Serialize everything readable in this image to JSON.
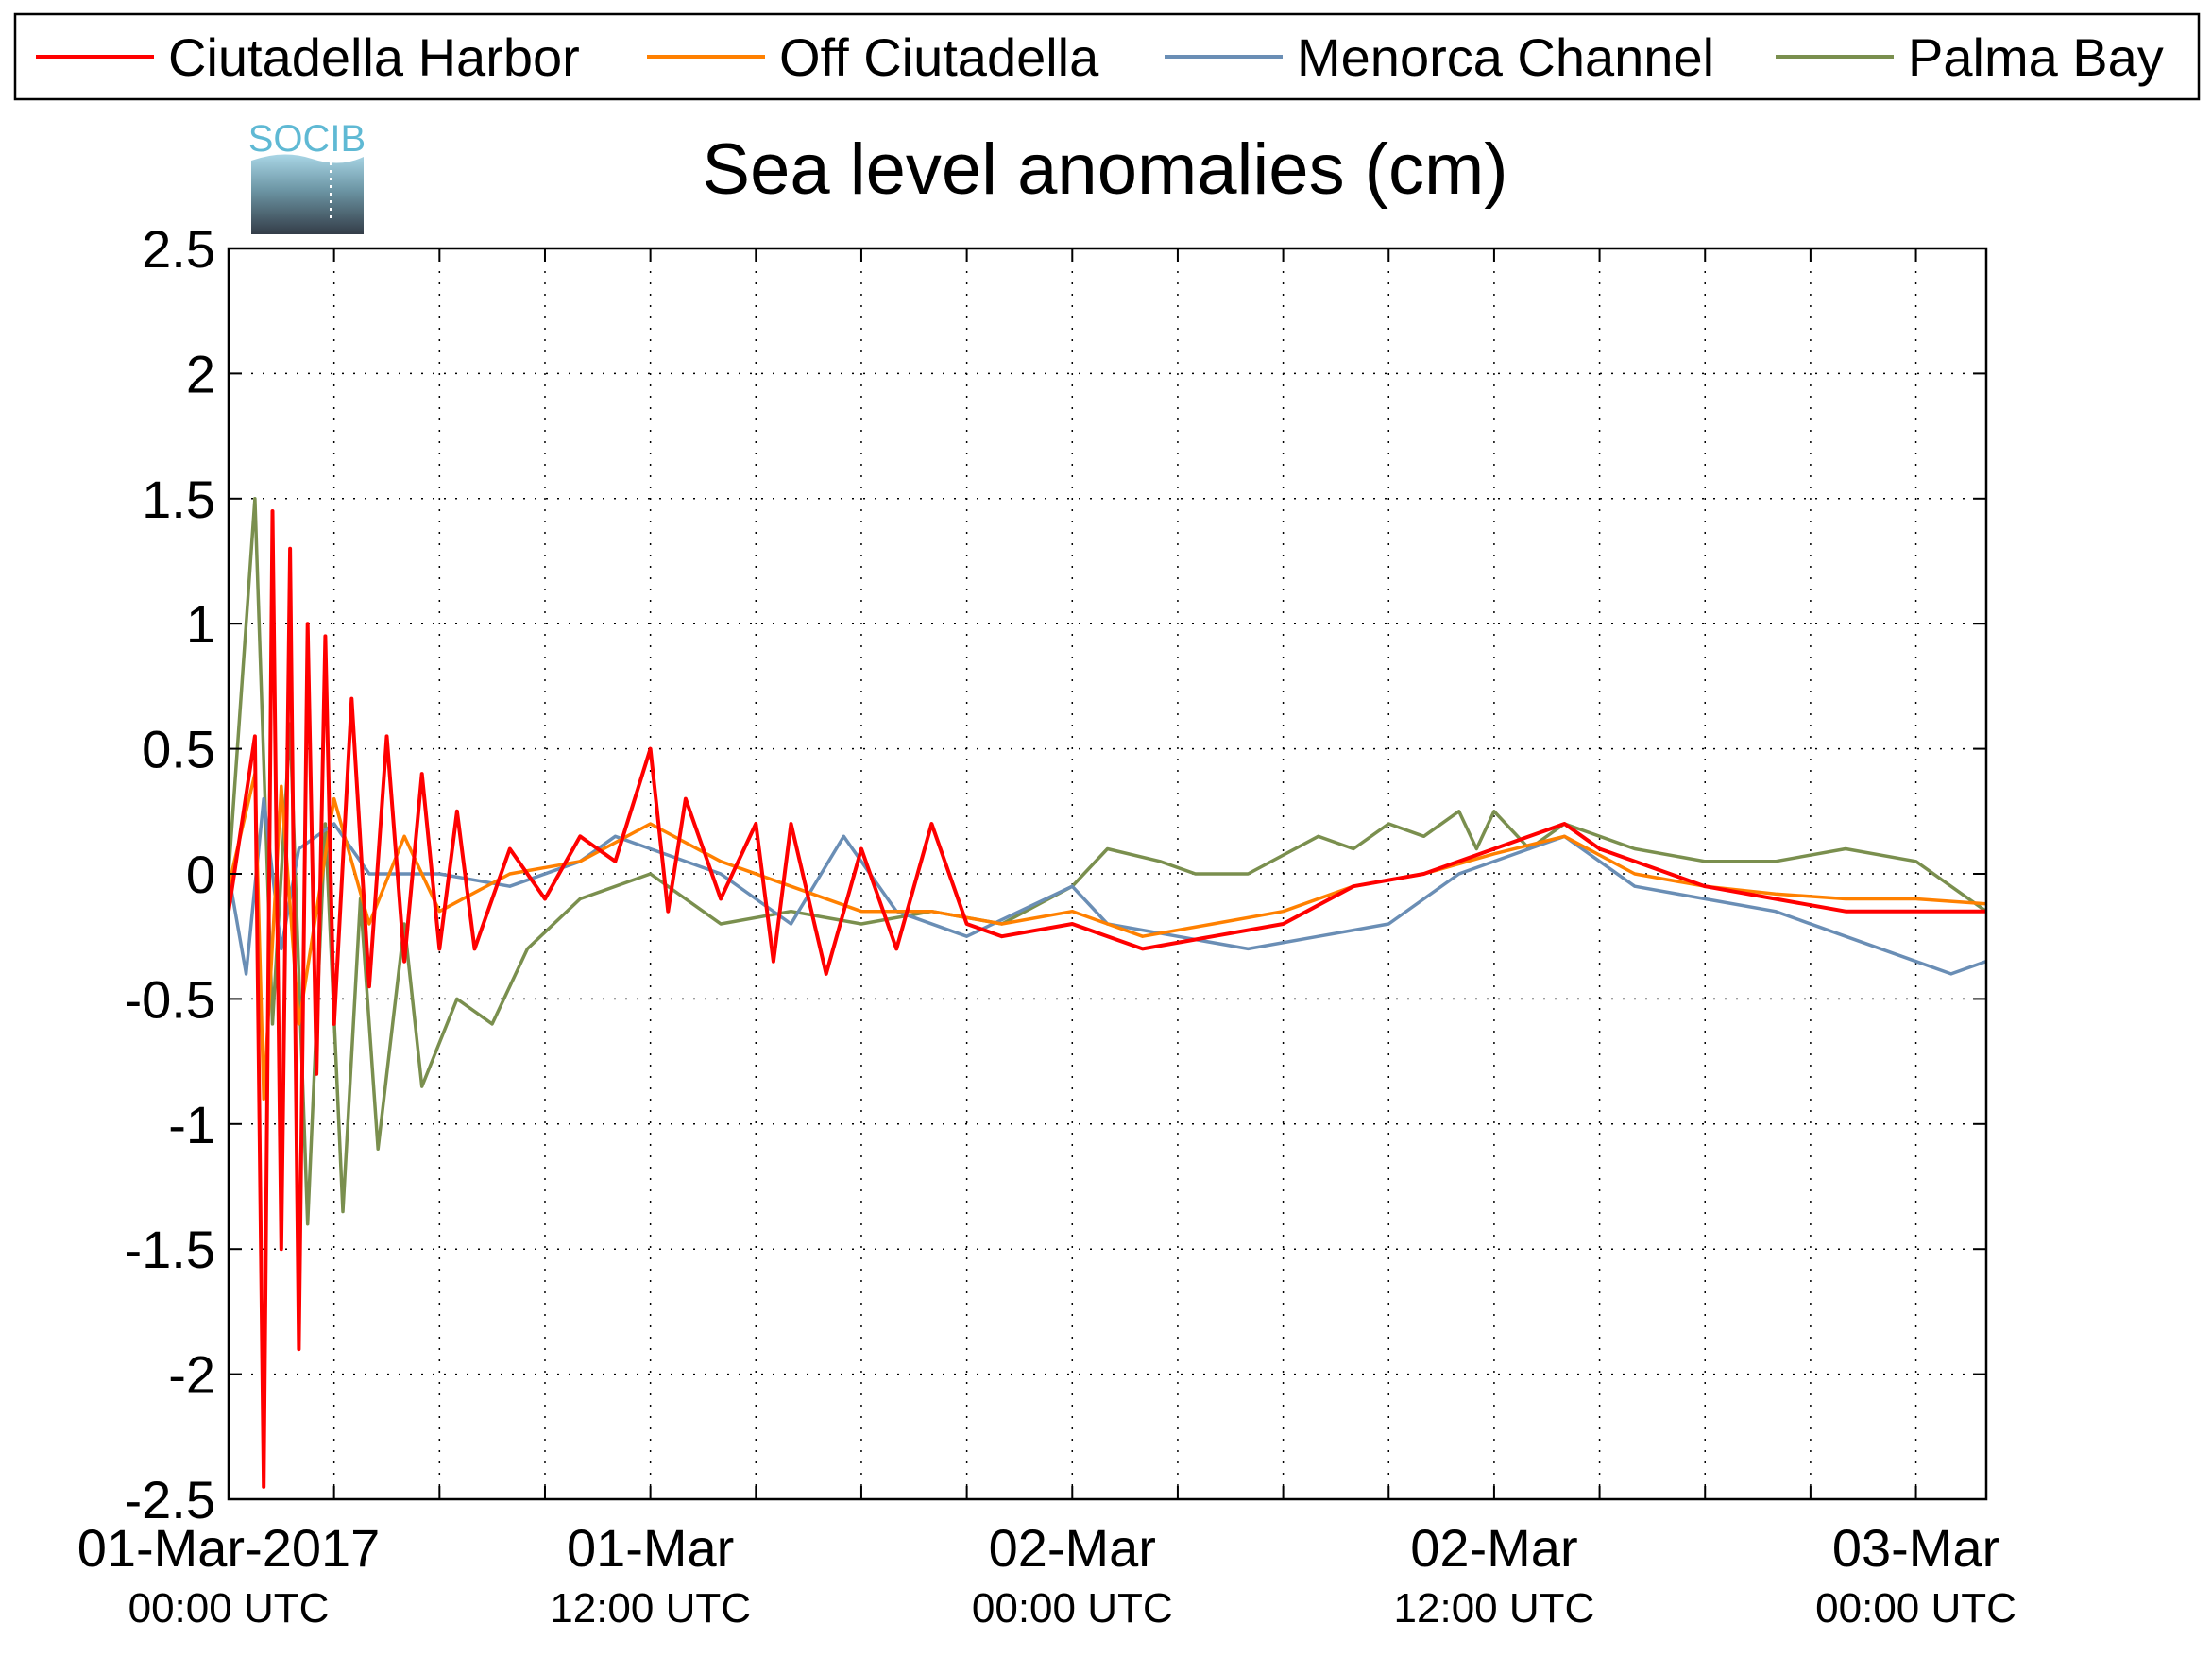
{
  "chart_data": {
    "type": "line",
    "title": "Sea level anomalies (cm)",
    "logo_text": "SOCIB",
    "xlabel": "",
    "ylabel": "",
    "x_range": [
      "2017-03-01 00:00",
      "2017-03-03 02:00"
    ],
    "ylim": [
      -2.5,
      2.5
    ],
    "y_ticks": [
      -2.5,
      -2,
      -1.5,
      -1,
      -0.5,
      0,
      0.5,
      1,
      1.5,
      2,
      2.5
    ],
    "y_tick_labels": [
      "-2.5",
      "-2",
      "-1.5",
      "-1",
      "-0.5",
      "0",
      "0.5",
      "1",
      "1.5",
      "2",
      "2.5"
    ],
    "x_ticks": [
      {
        "time": "2017-03-01 00:00",
        "line1": "01-Mar-2017",
        "line2": "00:00 UTC"
      },
      {
        "time": "2017-03-01 12:00",
        "line1": "01-Mar",
        "line2": "12:00 UTC"
      },
      {
        "time": "2017-03-02 00:00",
        "line1": "02-Mar",
        "line2": "00:00 UTC"
      },
      {
        "time": "2017-03-02 12:00",
        "line1": "02-Mar",
        "line2": "12:00 UTC"
      },
      {
        "time": "2017-03-03 00:00",
        "line1": "03-Mar",
        "line2": "00:00 UTC"
      }
    ],
    "grid": true,
    "legend_position": "top",
    "series": [
      {
        "name": "Ciutadella Harbor",
        "color": "#ff0000",
        "points": [
          [
            "2017-03-01 00:00",
            -0.15
          ],
          [
            "2017-03-01 00:45",
            0.55
          ],
          [
            "2017-03-01 01:00",
            -2.45
          ],
          [
            "2017-03-01 01:15",
            1.45
          ],
          [
            "2017-03-01 01:30",
            -1.5
          ],
          [
            "2017-03-01 01:45",
            1.3
          ],
          [
            "2017-03-01 02:00",
            -1.9
          ],
          [
            "2017-03-01 02:15",
            1.0
          ],
          [
            "2017-03-01 02:30",
            -0.8
          ],
          [
            "2017-03-01 02:45",
            0.95
          ],
          [
            "2017-03-01 03:00",
            -0.6
          ],
          [
            "2017-03-01 03:30",
            0.7
          ],
          [
            "2017-03-01 04:00",
            -0.45
          ],
          [
            "2017-03-01 04:30",
            0.55
          ],
          [
            "2017-03-01 05:00",
            -0.35
          ],
          [
            "2017-03-01 05:30",
            0.4
          ],
          [
            "2017-03-01 06:00",
            -0.3
          ],
          [
            "2017-03-01 06:30",
            0.25
          ],
          [
            "2017-03-01 07:00",
            -0.3
          ],
          [
            "2017-03-01 08:00",
            0.1
          ],
          [
            "2017-03-01 09:00",
            -0.1
          ],
          [
            "2017-03-01 10:00",
            0.15
          ],
          [
            "2017-03-01 11:00",
            0.05
          ],
          [
            "2017-03-01 12:00",
            0.5
          ],
          [
            "2017-03-01 12:30",
            -0.15
          ],
          [
            "2017-03-01 13:00",
            0.3
          ],
          [
            "2017-03-01 14:00",
            -0.1
          ],
          [
            "2017-03-01 15:00",
            0.2
          ],
          [
            "2017-03-01 15:30",
            -0.35
          ],
          [
            "2017-03-01 16:00",
            0.2
          ],
          [
            "2017-03-01 17:00",
            -0.4
          ],
          [
            "2017-03-01 18:00",
            0.1
          ],
          [
            "2017-03-01 19:00",
            -0.3
          ],
          [
            "2017-03-01 20:00",
            0.2
          ],
          [
            "2017-03-01 21:00",
            -0.2
          ],
          [
            "2017-03-01 22:00",
            -0.25
          ],
          [
            "2017-03-02 00:00",
            -0.2
          ],
          [
            "2017-03-02 02:00",
            -0.3
          ],
          [
            "2017-03-02 04:00",
            -0.25
          ],
          [
            "2017-03-02 06:00",
            -0.2
          ],
          [
            "2017-03-02 08:00",
            -0.05
          ],
          [
            "2017-03-02 10:00",
            0.0
          ],
          [
            "2017-03-02 12:00",
            0.1
          ],
          [
            "2017-03-02 14:00",
            0.2
          ],
          [
            "2017-03-02 15:00",
            0.1
          ],
          [
            "2017-03-02 16:00",
            0.05
          ],
          [
            "2017-03-02 18:00",
            -0.05
          ],
          [
            "2017-03-02 20:00",
            -0.1
          ],
          [
            "2017-03-02 22:00",
            -0.15
          ],
          [
            "2017-03-03 00:00",
            -0.15
          ],
          [
            "2017-03-03 02:00",
            -0.15
          ]
        ]
      },
      {
        "name": "Off Ciutadella",
        "color": "#ff8000",
        "points": [
          [
            "2017-03-01 00:00",
            -0.05
          ],
          [
            "2017-03-01 00:45",
            0.4
          ],
          [
            "2017-03-01 01:00",
            -0.9
          ],
          [
            "2017-03-01 01:30",
            0.35
          ],
          [
            "2017-03-01 02:00",
            -0.6
          ],
          [
            "2017-03-01 03:00",
            0.3
          ],
          [
            "2017-03-01 04:00",
            -0.2
          ],
          [
            "2017-03-01 05:00",
            0.15
          ],
          [
            "2017-03-01 06:00",
            -0.15
          ],
          [
            "2017-03-01 08:00",
            0.0
          ],
          [
            "2017-03-01 10:00",
            0.05
          ],
          [
            "2017-03-01 12:00",
            0.2
          ],
          [
            "2017-03-01 14:00",
            0.05
          ],
          [
            "2017-03-01 16:00",
            -0.05
          ],
          [
            "2017-03-01 18:00",
            -0.15
          ],
          [
            "2017-03-01 20:00",
            -0.15
          ],
          [
            "2017-03-01 22:00",
            -0.2
          ],
          [
            "2017-03-02 00:00",
            -0.15
          ],
          [
            "2017-03-02 02:00",
            -0.25
          ],
          [
            "2017-03-02 04:00",
            -0.2
          ],
          [
            "2017-03-02 06:00",
            -0.15
          ],
          [
            "2017-03-02 08:00",
            -0.05
          ],
          [
            "2017-03-02 10:00",
            0.0
          ],
          [
            "2017-03-02 12:00",
            0.08
          ],
          [
            "2017-03-02 14:00",
            0.15
          ],
          [
            "2017-03-02 16:00",
            0.0
          ],
          [
            "2017-03-02 18:00",
            -0.05
          ],
          [
            "2017-03-02 20:00",
            -0.08
          ],
          [
            "2017-03-02 22:00",
            -0.1
          ],
          [
            "2017-03-03 00:00",
            -0.1
          ],
          [
            "2017-03-03 02:00",
            -0.12
          ]
        ]
      },
      {
        "name": "Menorca Channel",
        "color": "#6a8eb5",
        "points": [
          [
            "2017-03-01 00:00",
            0.0
          ],
          [
            "2017-03-01 00:30",
            -0.4
          ],
          [
            "2017-03-01 01:00",
            0.3
          ],
          [
            "2017-03-01 01:30",
            -0.3
          ],
          [
            "2017-03-01 02:00",
            0.1
          ],
          [
            "2017-03-01 03:00",
            0.2
          ],
          [
            "2017-03-01 04:00",
            0.0
          ],
          [
            "2017-03-01 06:00",
            0.0
          ],
          [
            "2017-03-01 08:00",
            -0.05
          ],
          [
            "2017-03-01 10:00",
            0.05
          ],
          [
            "2017-03-01 11:00",
            0.15
          ],
          [
            "2017-03-01 12:00",
            0.1
          ],
          [
            "2017-03-01 14:00",
            0.0
          ],
          [
            "2017-03-01 16:00",
            -0.2
          ],
          [
            "2017-03-01 17:30",
            0.15
          ],
          [
            "2017-03-01 19:00",
            -0.15
          ],
          [
            "2017-03-01 21:00",
            -0.25
          ],
          [
            "2017-03-02 00:00",
            -0.05
          ],
          [
            "2017-03-02 01:00",
            -0.2
          ],
          [
            "2017-03-02 03:00",
            -0.25
          ],
          [
            "2017-03-02 05:00",
            -0.3
          ],
          [
            "2017-03-02 07:00",
            -0.25
          ],
          [
            "2017-03-02 09:00",
            -0.2
          ],
          [
            "2017-03-02 11:00",
            0.0
          ],
          [
            "2017-03-02 13:00",
            0.1
          ],
          [
            "2017-03-02 14:00",
            0.15
          ],
          [
            "2017-03-02 16:00",
            -0.05
          ],
          [
            "2017-03-02 18:00",
            -0.1
          ],
          [
            "2017-03-02 20:00",
            -0.15
          ],
          [
            "2017-03-02 22:00",
            -0.25
          ],
          [
            "2017-03-03 00:00",
            -0.35
          ],
          [
            "2017-03-03 01:00",
            -0.4
          ],
          [
            "2017-03-03 02:00",
            -0.35
          ]
        ]
      },
      {
        "name": "Palma Bay",
        "color": "#7a8f4e",
        "points": [
          [
            "2017-03-01 00:00",
            0.0
          ],
          [
            "2017-03-01 00:45",
            1.5
          ],
          [
            "2017-03-01 01:15",
            -0.6
          ],
          [
            "2017-03-01 01:45",
            0.6
          ],
          [
            "2017-03-01 02:15",
            -1.4
          ],
          [
            "2017-03-01 02:45",
            0.2
          ],
          [
            "2017-03-01 03:15",
            -1.35
          ],
          [
            "2017-03-01 03:45",
            -0.1
          ],
          [
            "2017-03-01 04:15",
            -1.1
          ],
          [
            "2017-03-01 05:00",
            -0.2
          ],
          [
            "2017-03-01 05:30",
            -0.85
          ],
          [
            "2017-03-01 06:30",
            -0.5
          ],
          [
            "2017-03-01 07:30",
            -0.6
          ],
          [
            "2017-03-01 08:30",
            -0.3
          ],
          [
            "2017-03-01 10:00",
            -0.1
          ],
          [
            "2017-03-01 12:00",
            0.0
          ],
          [
            "2017-03-01 14:00",
            -0.2
          ],
          [
            "2017-03-01 16:00",
            -0.15
          ],
          [
            "2017-03-01 18:00",
            -0.2
          ],
          [
            "2017-03-01 20:00",
            -0.15
          ],
          [
            "2017-03-01 22:00",
            -0.2
          ],
          [
            "2017-03-02 00:00",
            -0.05
          ],
          [
            "2017-03-02 01:00",
            0.1
          ],
          [
            "2017-03-02 02:30",
            0.05
          ],
          [
            "2017-03-02 03:30",
            0.0
          ],
          [
            "2017-03-02 05:00",
            0.0
          ],
          [
            "2017-03-02 07:00",
            0.15
          ],
          [
            "2017-03-02 08:00",
            0.1
          ],
          [
            "2017-03-02 09:00",
            0.2
          ],
          [
            "2017-03-02 10:00",
            0.15
          ],
          [
            "2017-03-02 11:00",
            0.25
          ],
          [
            "2017-03-02 11:30",
            0.1
          ],
          [
            "2017-03-02 12:00",
            0.25
          ],
          [
            "2017-03-02 13:00",
            0.1
          ],
          [
            "2017-03-02 14:00",
            0.2
          ],
          [
            "2017-03-02 16:00",
            0.1
          ],
          [
            "2017-03-02 18:00",
            0.05
          ],
          [
            "2017-03-02 20:00",
            0.05
          ],
          [
            "2017-03-02 22:00",
            0.1
          ],
          [
            "2017-03-03 00:00",
            0.05
          ],
          [
            "2017-03-03 02:00",
            -0.15
          ]
        ]
      }
    ]
  }
}
